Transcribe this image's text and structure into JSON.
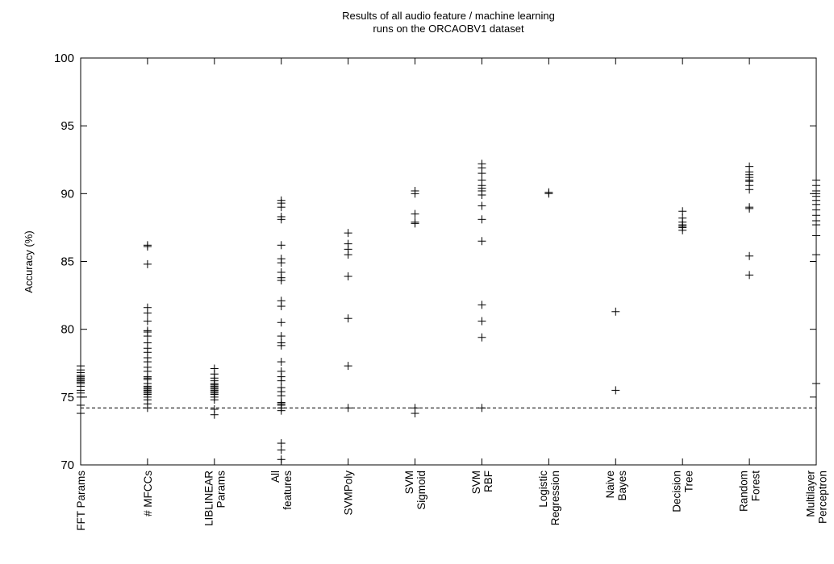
{
  "chart_data": {
    "type": "scatter",
    "title": [
      "Results of all audio feature / machine learning",
      "runs on the ORCAOBV1 dataset"
    ],
    "xlabel": "",
    "ylabel": "Accuracy (%)",
    "ylim": [
      70,
      100
    ],
    "yticks": [
      70,
      75,
      80,
      85,
      90,
      95,
      100
    ],
    "grid": false,
    "legend": "none",
    "baseline": 74.2,
    "marker_color": "#000000",
    "categories": [
      {
        "label": [
          "FFT Params"
        ],
        "values": [
          77.3,
          77.0,
          76.8,
          76.6,
          76.5,
          76.4,
          76.3,
          76.2,
          76.1,
          76.0,
          75.8,
          75.5,
          75.3,
          75.0,
          74.4,
          73.8
        ]
      },
      {
        "label": [
          "# MFCCs"
        ],
        "values": [
          86.2,
          86.1,
          84.8,
          81.6,
          81.2,
          80.6,
          79.9,
          79.8,
          79.5,
          79.0,
          78.6,
          78.3,
          77.9,
          77.6,
          77.2,
          76.9,
          76.5,
          76.4,
          76.3,
          76.0,
          75.8,
          75.7,
          75.6,
          75.5,
          75.4,
          75.3,
          75.2,
          75.0,
          74.8,
          74.5,
          74.2
        ]
      },
      {
        "label": [
          "LIBLINEAR",
          "Params"
        ],
        "values": [
          77.1,
          76.7,
          76.4,
          76.2,
          76.0,
          75.9,
          75.8,
          75.7,
          75.6,
          75.5,
          75.4,
          75.3,
          75.2,
          75.0,
          74.8,
          74.1,
          73.7
        ]
      },
      {
        "label": [
          "All",
          "features"
        ],
        "values": [
          89.5,
          89.3,
          89.0,
          88.3,
          88.1,
          86.2,
          85.2,
          84.9,
          84.2,
          83.8,
          83.6,
          82.1,
          81.7,
          80.5,
          79.5,
          79.0,
          78.8,
          77.6,
          76.9,
          76.5,
          76.2,
          75.7,
          75.4,
          75.1,
          74.6,
          74.5,
          74.4,
          74.2,
          74.0,
          71.6,
          71.1,
          70.4
        ]
      },
      {
        "label": [
          "SVMPoly"
        ],
        "values": [
          87.1,
          86.3,
          85.9,
          85.5,
          83.9,
          80.8,
          77.3,
          74.2
        ]
      },
      {
        "label": [
          "SVM",
          "Sigmoid"
        ],
        "values": [
          90.2,
          90.0,
          88.5,
          87.9,
          87.8,
          74.2,
          73.8
        ]
      },
      {
        "label": [
          "SVM",
          "RBF"
        ],
        "values": [
          92.2,
          91.9,
          91.5,
          91.0,
          90.6,
          90.4,
          90.2,
          89.9,
          89.1,
          88.1,
          86.5,
          81.8,
          80.6,
          79.4,
          74.2
        ]
      },
      {
        "label": [
          "Logistic",
          "Regression"
        ],
        "values": [
          90.1,
          90.0
        ]
      },
      {
        "label": [
          "Naive",
          "Bayes"
        ],
        "values": [
          81.3,
          75.5
        ]
      },
      {
        "label": [
          "Decision",
          "Tree"
        ],
        "values": [
          88.7,
          88.2,
          87.9,
          87.7,
          87.6,
          87.5,
          87.3
        ]
      },
      {
        "label": [
          "Random",
          "Forest"
        ],
        "values": [
          92.0,
          91.6,
          91.4,
          91.2,
          91.0,
          90.9,
          90.6,
          90.3,
          89.0,
          88.9,
          85.4,
          84.0
        ]
      },
      {
        "label": [
          "Multilayer",
          "Perceptron"
        ],
        "values": [
          91.0,
          90.6,
          90.2,
          90.0,
          89.8,
          89.5,
          89.2,
          88.8,
          88.4,
          88.0,
          87.7,
          86.9,
          85.5,
          76.0
        ]
      }
    ]
  }
}
